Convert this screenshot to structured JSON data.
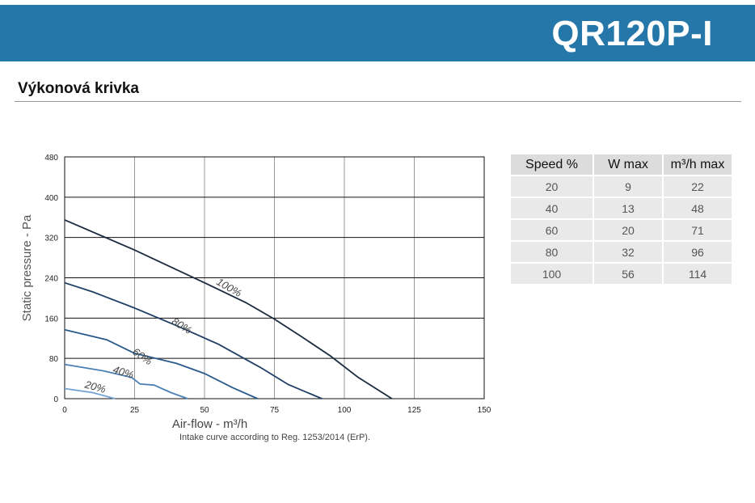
{
  "header": {
    "model": "QR120P-I"
  },
  "section": {
    "title": "Výkonová krivka"
  },
  "note": "Intake curve according to Reg. 1253/2014 (ErP).",
  "table": {
    "headers": [
      "Speed %",
      "W max",
      "m³/h max"
    ],
    "rows": [
      [
        "20",
        "9",
        "22"
      ],
      [
        "40",
        "13",
        "48"
      ],
      [
        "60",
        "20",
        "71"
      ],
      [
        "80",
        "32",
        "96"
      ],
      [
        "100",
        "56",
        "114"
      ]
    ]
  },
  "chart_data": {
    "type": "line",
    "xlabel": "Air-flow - m³/h",
    "ylabel": "Static pressure - Pa",
    "xlim": [
      0,
      150
    ],
    "ylim": [
      0,
      480
    ],
    "xticks": [
      "0",
      "25",
      "50",
      "75",
      "100",
      "125",
      "150"
    ],
    "yticks": [
      "0",
      "80",
      "160",
      "240",
      "320",
      "400",
      "480"
    ],
    "grid": true,
    "colors": {
      "100%": "#1b2a3e",
      "80%": "#1f3f66",
      "60%": "#2a5a8c",
      "40%": "#4a7fb5",
      "20%": "#6fa1d2"
    },
    "series": [
      {
        "name": "100%",
        "points": [
          [
            0,
            355
          ],
          [
            25,
            295
          ],
          [
            50,
            230
          ],
          [
            65,
            190
          ],
          [
            75,
            158
          ],
          [
            85,
            122
          ],
          [
            95,
            85
          ],
          [
            105,
            42
          ],
          [
            117,
            0
          ]
        ]
      },
      {
        "name": "80%",
        "points": [
          [
            0,
            230
          ],
          [
            10,
            212
          ],
          [
            25,
            180
          ],
          [
            40,
            145
          ],
          [
            55,
            108
          ],
          [
            70,
            62
          ],
          [
            80,
            28
          ],
          [
            92,
            0
          ]
        ]
      },
      {
        "name": "60%",
        "points": [
          [
            0,
            137
          ],
          [
            15,
            117
          ],
          [
            25,
            90
          ],
          [
            40,
            70
          ],
          [
            50,
            50
          ],
          [
            60,
            22
          ],
          [
            69,
            0
          ]
        ]
      },
      {
        "name": "40%",
        "points": [
          [
            0,
            68
          ],
          [
            14,
            55
          ],
          [
            24,
            42
          ],
          [
            27,
            29
          ],
          [
            32,
            27
          ],
          [
            38,
            12
          ],
          [
            44,
            0
          ]
        ]
      },
      {
        "name": "20%",
        "points": [
          [
            0,
            20
          ],
          [
            10,
            12
          ],
          [
            18,
            0
          ]
        ]
      }
    ],
    "curve_labels": [
      {
        "text": "100%",
        "x": 54,
        "y": 228,
        "angle": 30
      },
      {
        "text": "80%",
        "x": 38,
        "y": 150,
        "angle": 32
      },
      {
        "text": "60%",
        "x": 24,
        "y": 90,
        "angle": 35
      },
      {
        "text": "40%",
        "x": 17,
        "y": 52,
        "angle": 17
      },
      {
        "text": "20%",
        "x": 7,
        "y": 22,
        "angle": 15
      }
    ]
  }
}
